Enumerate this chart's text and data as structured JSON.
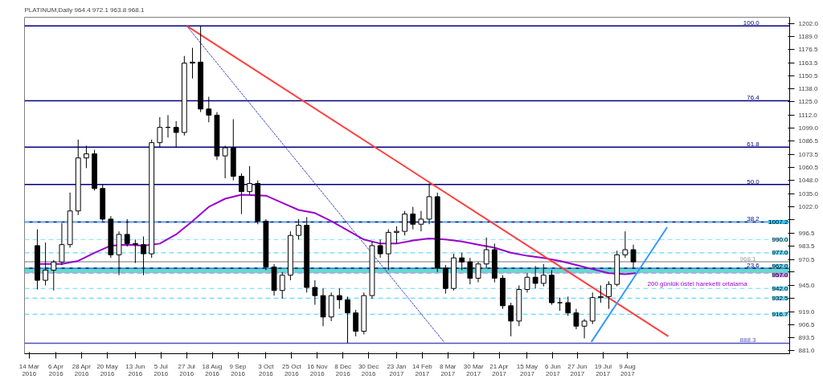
{
  "chart_data": {
    "type": "candlestick",
    "title": "PLATINUM,Daily  964.4 972.1 963.8 968.1",
    "x": [
      "2016-03-21",
      "2016-03-28",
      "2016-04-04",
      "2016-04-11",
      "2016-04-18",
      "2016-04-25",
      "2016-05-02",
      "2016-05-09",
      "2016-05-16",
      "2016-05-23",
      "2016-05-30",
      "2016-06-06",
      "2016-06-13",
      "2016-06-20",
      "2016-06-27",
      "2016-07-04",
      "2016-07-11",
      "2016-07-18",
      "2016-07-25",
      "2016-08-01",
      "2016-08-08",
      "2016-08-15",
      "2016-08-22",
      "2016-08-29",
      "2016-09-05",
      "2016-09-12",
      "2016-09-19",
      "2016-09-26",
      "2016-10-03",
      "2016-10-10",
      "2016-10-17",
      "2016-10-24",
      "2016-10-31",
      "2016-11-07",
      "2016-11-14",
      "2016-11-21",
      "2016-11-28",
      "2016-12-05",
      "2016-12-12",
      "2016-12-19",
      "2016-12-26",
      "2017-01-02",
      "2017-01-09",
      "2017-01-16",
      "2017-01-23",
      "2017-01-30",
      "2017-02-06",
      "2017-02-13",
      "2017-02-20",
      "2017-02-27",
      "2017-03-06",
      "2017-03-13",
      "2017-03-20",
      "2017-03-27",
      "2017-04-03",
      "2017-04-10",
      "2017-04-17",
      "2017-04-24",
      "2017-05-01",
      "2017-05-08",
      "2017-05-15",
      "2017-05-22",
      "2017-05-29",
      "2017-06-05",
      "2017-06-12",
      "2017-06-19",
      "2017-06-26",
      "2017-07-03",
      "2017-07-10",
      "2017-07-17",
      "2017-07-24",
      "2017-07-31",
      "2017-08-07",
      "2017-08-14"
    ],
    "ohlc": [
      [
        984,
        1000,
        941,
        950
      ],
      [
        950,
        987,
        945,
        960
      ],
      [
        960,
        970,
        940,
        968
      ],
      [
        968,
        1006,
        965,
        985
      ],
      [
        985,
        1036,
        982,
        1018
      ],
      [
        1018,
        1088,
        1014,
        1070
      ],
      [
        1070,
        1082,
        1060,
        1074
      ],
      [
        1074,
        1078,
        1038,
        1040
      ],
      [
        1040,
        1044,
        1008,
        1010
      ],
      [
        1010,
        1013,
        972,
        975
      ],
      [
        975,
        998,
        955,
        995
      ],
      [
        995,
        1010,
        983,
        986
      ],
      [
        986,
        990,
        967,
        985
      ],
      [
        985,
        993,
        955,
        976
      ],
      [
        976,
        1088,
        972,
        1085
      ],
      [
        1085,
        1110,
        1080,
        1100
      ],
      [
        1100,
        1112,
        1090,
        1100
      ],
      [
        1100,
        1106,
        1080,
        1095
      ],
      [
        1095,
        1170,
        1092,
        1163
      ],
      [
        1163,
        1178,
        1148,
        1164
      ],
      [
        1164,
        1199.6,
        1115,
        1118
      ],
      [
        1118,
        1130,
        1105,
        1112
      ],
      [
        1112,
        1115,
        1068,
        1072
      ],
      [
        1072,
        1082,
        1050,
        1080
      ],
      [
        1080,
        1108,
        1048,
        1052
      ],
      [
        1052,
        1055,
        1015,
        1037
      ],
      [
        1037,
        1062,
        1034,
        1045
      ],
      [
        1045,
        1048,
        1005,
        1008
      ],
      [
        1008,
        1010,
        960,
        963
      ],
      [
        963,
        966,
        935,
        940
      ],
      [
        940,
        958,
        932,
        955
      ],
      [
        955,
        998,
        950,
        994
      ],
      [
        994,
        1010,
        990,
        1004
      ],
      [
        1004,
        1012,
        938,
        943
      ],
      [
        943,
        950,
        926,
        935
      ],
      [
        935,
        942,
        905,
        914
      ],
      [
        914,
        938,
        910,
        935
      ],
      [
        935,
        942,
        922,
        931
      ],
      [
        931,
        934,
        888.3,
        918
      ],
      [
        918,
        921,
        895,
        900
      ],
      [
        900,
        938,
        897,
        935
      ],
      [
        935,
        988,
        932,
        984
      ],
      [
        984,
        990,
        972,
        976
      ],
      [
        976,
        1000,
        960,
        997
      ],
      [
        997,
        1003,
        986,
        998
      ],
      [
        998,
        1018,
        994,
        1015
      ],
      [
        1015,
        1022,
        1000,
        1005
      ],
      [
        1005,
        1018,
        998,
        1010
      ],
      [
        1010,
        1045,
        1005,
        1032
      ],
      [
        1032,
        1036,
        958,
        962
      ],
      [
        962,
        965,
        937,
        942
      ],
      [
        942,
        976,
        940,
        972
      ],
      [
        972,
        977,
        960,
        968
      ],
      [
        968,
        972,
        946,
        952
      ],
      [
        952,
        968,
        948,
        966
      ],
      [
        966,
        992,
        962,
        980
      ],
      [
        980,
        986,
        948,
        952
      ],
      [
        952,
        955,
        922,
        925
      ],
      [
        925,
        928,
        895,
        910
      ],
      [
        910,
        945,
        905,
        941
      ],
      [
        941,
        957,
        938,
        953
      ],
      [
        953,
        964,
        942,
        947
      ],
      [
        947,
        966,
        944,
        955
      ],
      [
        955,
        960,
        926,
        928
      ],
      [
        928,
        933,
        920,
        928
      ],
      [
        928,
        934,
        915,
        918
      ],
      [
        918,
        922,
        902,
        905
      ],
      [
        905,
        912,
        893,
        910
      ],
      [
        910,
        938,
        907,
        933
      ],
      [
        933,
        945,
        928,
        934
      ],
      [
        934,
        949,
        922,
        946
      ],
      [
        946,
        979,
        944,
        975
      ],
      [
        975,
        998,
        972,
        980
      ],
      [
        980,
        985,
        962,
        968.1
      ]
    ],
    "series": [
      {
        "type": "line",
        "color": "#9900cc",
        "line_style": "solid",
        "x": [
          "2016-03-21",
          "2016-04-11",
          "2016-04-25",
          "2016-05-09",
          "2016-05-23",
          "2016-06-06",
          "2016-06-20",
          "2016-07-04",
          "2016-07-18",
          "2016-08-01",
          "2016-08-15",
          "2016-08-29",
          "2016-09-12",
          "2016-10-03",
          "2016-10-17",
          "2016-10-31",
          "2016-11-14",
          "2016-11-28",
          "2016-12-12",
          "2016-12-26",
          "2017-01-09",
          "2017-01-23",
          "2017-02-06",
          "2017-02-20",
          "2017-03-06",
          "2017-03-20",
          "2017-04-03",
          "2017-04-17",
          "2017-05-01",
          "2017-05-15",
          "2017-05-29",
          "2017-06-12",
          "2017-06-26",
          "2017-07-10",
          "2017-07-24",
          "2017-08-07",
          "2017-08-16"
        ],
        "values": [
          966,
          966,
          969,
          977,
          984,
          985,
          984,
          986,
          995,
          1008,
          1022,
          1030,
          1034,
          1033,
          1026,
          1019,
          1016,
          1008,
          999,
          990,
          986,
          986,
          989,
          991,
          990,
          988,
          985,
          982,
          977,
          974,
          972,
          969,
          965,
          961,
          957,
          956,
          957
        ]
      },
      {
        "type": "line",
        "color": "#ff4040",
        "line_style": "solid",
        "x": [
          "2016-07-27",
          "2017-09-13"
        ],
        "values": [
          1199.6,
          895
        ]
      },
      {
        "type": "line",
        "color": "#4040c0",
        "line_style": "dotted",
        "x": [
          "2016-07-27",
          "2017-03-05"
        ],
        "values": [
          1199.6,
          889
        ]
      },
      {
        "type": "line",
        "color": "#3399ff",
        "line_style": "solid",
        "x": [
          "2017-07-09",
          "2017-09-12"
        ],
        "values": [
          889.5,
          1002
        ]
      }
    ],
    "ref_lines": [
      {
        "axis": "y",
        "value": 1199.6,
        "color": "#000080",
        "line_style": "solid"
      },
      {
        "axis": "y",
        "value": 1126.1,
        "color": "#000080",
        "line_style": "solid"
      },
      {
        "axis": "y",
        "value": 1080.7,
        "color": "#000080",
        "line_style": "solid"
      },
      {
        "axis": "y",
        "value": 1043.9,
        "color": "#000080",
        "line_style": "solid"
      },
      {
        "axis": "y",
        "value": 1007.2,
        "color": "#000080",
        "line_style": "solid"
      },
      {
        "axis": "y",
        "value": 961.8,
        "color": "#000080",
        "line_style": "solid"
      },
      {
        "axis": "y",
        "value": 968.1,
        "label": "968.1",
        "color": "#a0a0a0",
        "line_style": "solid"
      },
      {
        "axis": "y",
        "value": 888.3,
        "label": "888.3",
        "color": "#5050c0",
        "line_style": "solid"
      },
      {
        "axis": "y",
        "value": 1007.2,
        "label": "1007.2",
        "color": "#33ccff",
        "line_style": "dashed"
      },
      {
        "axis": "y",
        "value": 990.0,
        "label": "990.0",
        "color": "#99e6ff",
        "line_style": "dashed"
      },
      {
        "axis": "y",
        "value": 977.0,
        "label": "977.0",
        "color": "#66d9ff",
        "line_style": "dashed"
      },
      {
        "axis": "y",
        "value": 962.0,
        "label": "962.0",
        "color": "#66d9ff",
        "line_style": "dashed"
      },
      {
        "axis": "y",
        "value": 957.0,
        "label": "957.0",
        "color": "#cc88ee",
        "line_style": "dashed"
      },
      {
        "axis": "y",
        "value": 942.0,
        "label": "942.0",
        "color": "#66d9ff",
        "line_style": "dashed"
      },
      {
        "axis": "y",
        "value": 932.5,
        "label": "932.5",
        "color": "#66d9ff",
        "line_style": "dashed"
      },
      {
        "axis": "y",
        "value": 916.7,
        "label": "916.7",
        "color": "#66d9ff",
        "line_style": "dashed"
      }
    ],
    "bands": [
      {
        "axis": "y",
        "from": 957.0,
        "to": 962.0,
        "color": "#40d0c0"
      }
    ],
    "annotations": [
      "200 günlük üstel hareketli ortalama",
      {
        "text": "100.0",
        "x": "2017-11-30",
        "y": 1199.6
      },
      {
        "text": "76.4",
        "x": "2017-11-30",
        "y": 1126.1
      },
      {
        "text": "61.8",
        "x": "2017-11-30",
        "y": 1080.7
      },
      {
        "text": "50.0",
        "x": "2017-11-30",
        "y": 1043.9
      },
      {
        "text": "38.2",
        "x": "2017-11-30",
        "y": 1007.2
      },
      {
        "text": "23.6",
        "x": "2017-11-30",
        "y": 961.8
      }
    ],
    "xlim": [
      "2016-03-10",
      "2017-12-26"
    ],
    "xticks": [
      {
        "value": "2016-03-14",
        "label": "14 Mar 2016"
      },
      {
        "value": "2016-04-06",
        "label": "6 Apr 2016"
      },
      {
        "value": "2016-04-28",
        "label": "28 Apr 2016"
      },
      {
        "value": "2016-05-20",
        "label": "20 May 2016"
      },
      {
        "value": "2016-06-13",
        "label": "13 Jun 2016"
      },
      {
        "value": "2016-07-05",
        "label": "5 Jul 2016"
      },
      {
        "value": "2016-07-27",
        "label": "27 Jul 2016"
      },
      {
        "value": "2016-08-18",
        "label": "18 Aug 2016"
      },
      {
        "value": "2016-09-09",
        "label": "9 Sep 2016"
      },
      {
        "value": "2016-10-03",
        "label": "3 Oct 2016"
      },
      {
        "value": "2016-10-25",
        "label": "25 Oct 2016"
      },
      {
        "value": "2016-11-16",
        "label": "16 Nov 2016"
      },
      {
        "value": "2016-12-08",
        "label": "8 Dec 2016"
      },
      {
        "value": "2016-12-30",
        "label": "30 Dec 2016"
      },
      {
        "value": "2017-01-23",
        "label": "23 Jan 2017"
      },
      {
        "value": "2017-02-14",
        "label": "14 Feb 2017"
      },
      {
        "value": "2017-03-08",
        "label": "8 Mar 2017"
      },
      {
        "value": "2017-03-30",
        "label": "30 Mar 2017"
      },
      {
        "value": "2017-04-21",
        "label": "21 Apr 2017"
      },
      {
        "value": "2017-05-15",
        "label": "15 May 2017"
      },
      {
        "value": "2017-06-06",
        "label": "6 Jun 2017"
      },
      {
        "value": "2017-06-27",
        "label": "27 Jun 2017"
      },
      {
        "value": "2017-07-19",
        "label": "19 Jul 2017"
      },
      {
        "value": "2017-08-09",
        "label": "9 Aug 2017"
      }
    ],
    "ylim": [
      878,
      1208
    ],
    "yticks": [
      {
        "value": 881.0,
        "label": "881.0"
      },
      {
        "value": 893.5,
        "label": "893.5"
      },
      {
        "value": 906.5,
        "label": "906.5"
      },
      {
        "value": 919.0,
        "label": "919.0"
      },
      {
        "value": 932.0,
        "label": null
      },
      {
        "value": 945.0,
        "label": "945.0"
      },
      {
        "value": 958.0,
        "label": null
      },
      {
        "value": 970.5,
        "label": "970.5"
      },
      {
        "value": 983.5,
        "label": "983.5"
      },
      {
        "value": 996.5,
        "label": "996.5"
      },
      {
        "value": 1009.5,
        "label": null
      },
      {
        "value": 1022.0,
        "label": "1022.0"
      },
      {
        "value": 1035.0,
        "label": "1035.0"
      },
      {
        "value": 1048.0,
        "label": "1048.0"
      },
      {
        "value": 1060.5,
        "label": "1060.5"
      },
      {
        "value": 1073.5,
        "label": "1073.5"
      },
      {
        "value": 1086.5,
        "label": "1086.5"
      },
      {
        "value": 1099.0,
        "label": "1099.0"
      },
      {
        "value": 1112.0,
        "label": "1112.0"
      },
      {
        "value": 1125.0,
        "label": "1125.0"
      },
      {
        "value": 1138.0,
        "label": "1138.0"
      },
      {
        "value": 1150.5,
        "label": "1150.5"
      },
      {
        "value": 1163.5,
        "label": "1163.5"
      },
      {
        "value": 1176.5,
        "label": "1176.5"
      },
      {
        "value": 1189.0,
        "label": "1189.0"
      },
      {
        "value": 1202.0,
        "label": "1202.0"
      }
    ]
  }
}
